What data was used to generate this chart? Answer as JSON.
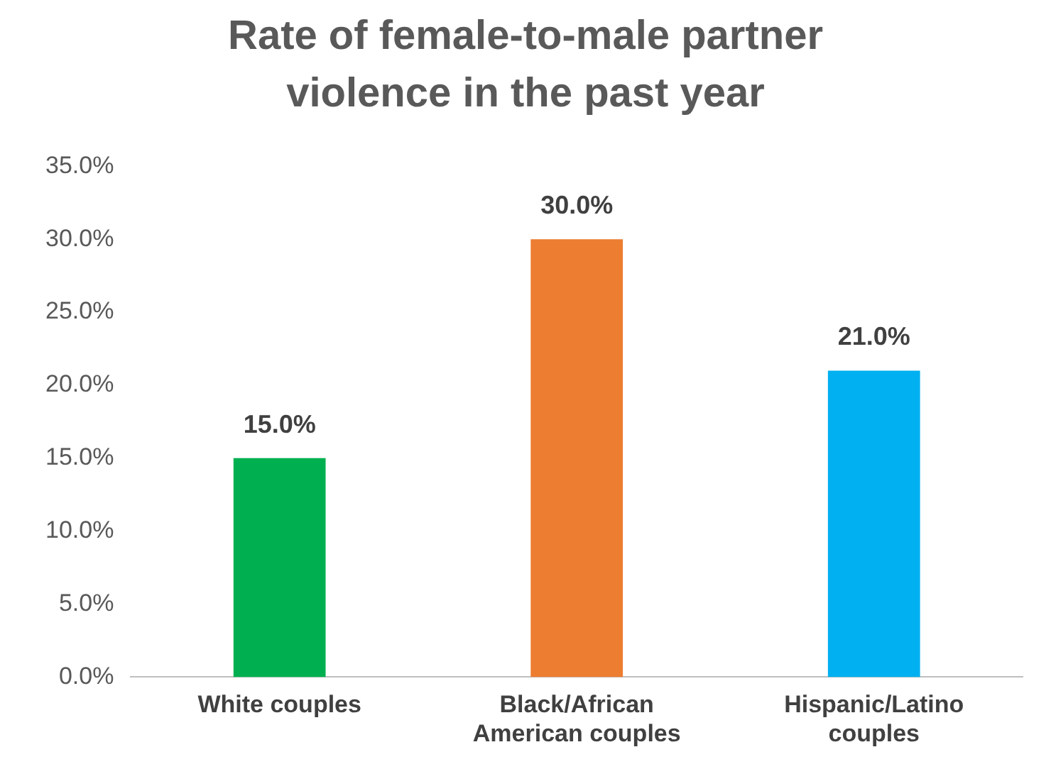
{
  "chart_data": {
    "type": "bar",
    "title": "Rate of female-to-male partner violence in the past year",
    "categories": [
      "White couples",
      "Black/African American couples",
      "Hispanic/Latino couples"
    ],
    "values": [
      15,
      30,
      21
    ],
    "colors": [
      "#00b050",
      "#ed7d31",
      "#00b0f0"
    ],
    "value_labels": [
      "15.0%",
      "30.0%",
      "21.0%"
    ],
    "ylim": [
      0,
      35
    ],
    "yticks": [
      {
        "value": 0,
        "label": "0.0%"
      },
      {
        "value": 5,
        "label": "5.0%"
      },
      {
        "value": 10,
        "label": "10.0%"
      },
      {
        "value": 15,
        "label": "15.0%"
      },
      {
        "value": 20,
        "label": "20.0%"
      },
      {
        "value": 25,
        "label": "25.0%"
      },
      {
        "value": 30,
        "label": "30.0%"
      },
      {
        "value": 35,
        "label": "35.0%"
      }
    ],
    "grid": false,
    "legend": false
  }
}
